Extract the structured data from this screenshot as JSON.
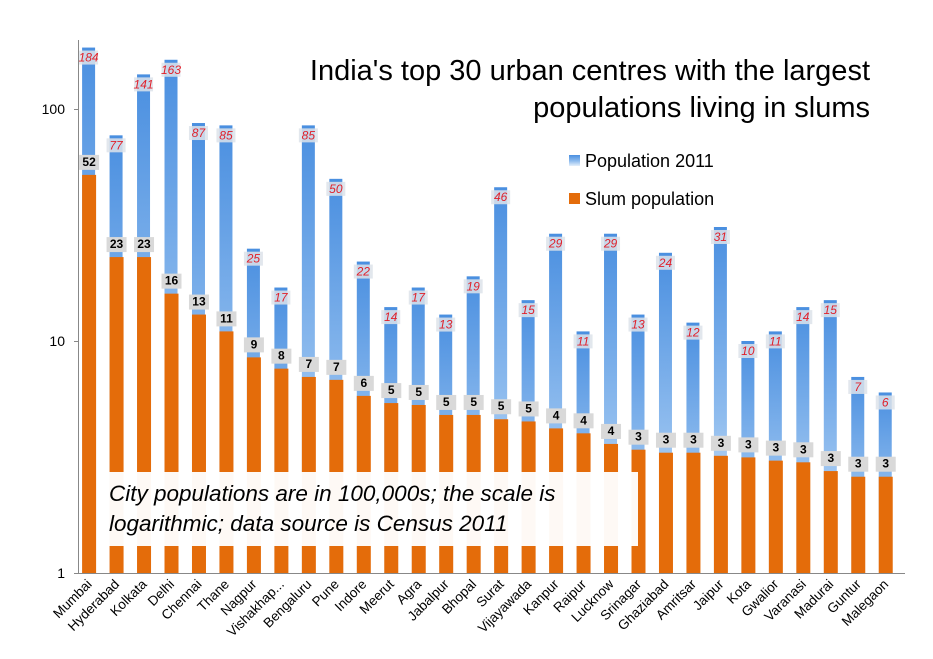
{
  "chart_data": {
    "type": "bar",
    "title": [
      "India's top 30 urban centres with the largest",
      "populations living in slums"
    ],
    "y_scale": "log",
    "ylim": [
      1,
      190
    ],
    "yticks": [
      "1",
      "10",
      "100"
    ],
    "legend_position": "top-right",
    "note": [
      "City populations are in 100,000s; the scale is",
      "logarithmic; data source is Census 2011"
    ],
    "categories": [
      "Mumbai",
      "Hyderabad",
      "Kolkata",
      "Delhi",
      "Chennai",
      "Thane",
      "Nagpur",
      "Vishakhap...",
      "Bengaluru",
      "Pune",
      "Indore",
      "Meerut",
      "Agra",
      "Jabalpur",
      "Bhopal",
      "Surat",
      "Vijayawada",
      "Kanpur",
      "Raipur",
      "Lucknow",
      "Srinagar",
      "Ghaziabad",
      "Amritsar",
      "Jaipur",
      "Kota",
      "Gwalior",
      "Varanasi",
      "Madurai",
      "Guntur",
      "Malegaon"
    ],
    "series": [
      {
        "name": "Population 2011",
        "color": "#5b9bd5",
        "values": [
          184,
          77,
          141,
          163,
          87,
          85,
          25,
          17,
          85,
          50,
          22,
          14,
          17,
          13,
          19,
          46,
          15,
          29,
          11,
          29,
          13,
          24,
          12,
          31,
          10,
          11,
          14,
          15,
          7,
          6
        ],
        "labels": [
          "184",
          "77",
          "141",
          "163",
          "87",
          "85",
          "25",
          "17",
          "85",
          "50",
          "22",
          "14",
          "17",
          "13",
          "19",
          "46",
          "15",
          "29",
          "11",
          "29",
          "13",
          "24",
          "12",
          "31",
          "10",
          "11",
          "14",
          "15",
          "7",
          "6"
        ]
      },
      {
        "name": "Slum population",
        "color": "#e46c0a",
        "values": [
          52,
          23,
          23,
          16,
          13,
          11,
          8.5,
          7.6,
          7,
          6.8,
          5.8,
          5.4,
          5.3,
          4.8,
          4.8,
          4.6,
          4.5,
          4.2,
          4.0,
          3.6,
          3.4,
          3.3,
          3.3,
          3.2,
          3.15,
          3.05,
          3.0,
          2.75,
          2.6,
          2.6
        ],
        "labels": [
          "52",
          "23",
          "23",
          "16",
          "13",
          "11",
          "9",
          "8",
          "7",
          "7",
          "6",
          "5",
          "5",
          "5",
          "5",
          "5",
          "5",
          "4",
          "4",
          "4",
          "3",
          "3",
          "3",
          "3",
          "3",
          "3",
          "3",
          "3",
          "3",
          "3"
        ]
      }
    ]
  }
}
